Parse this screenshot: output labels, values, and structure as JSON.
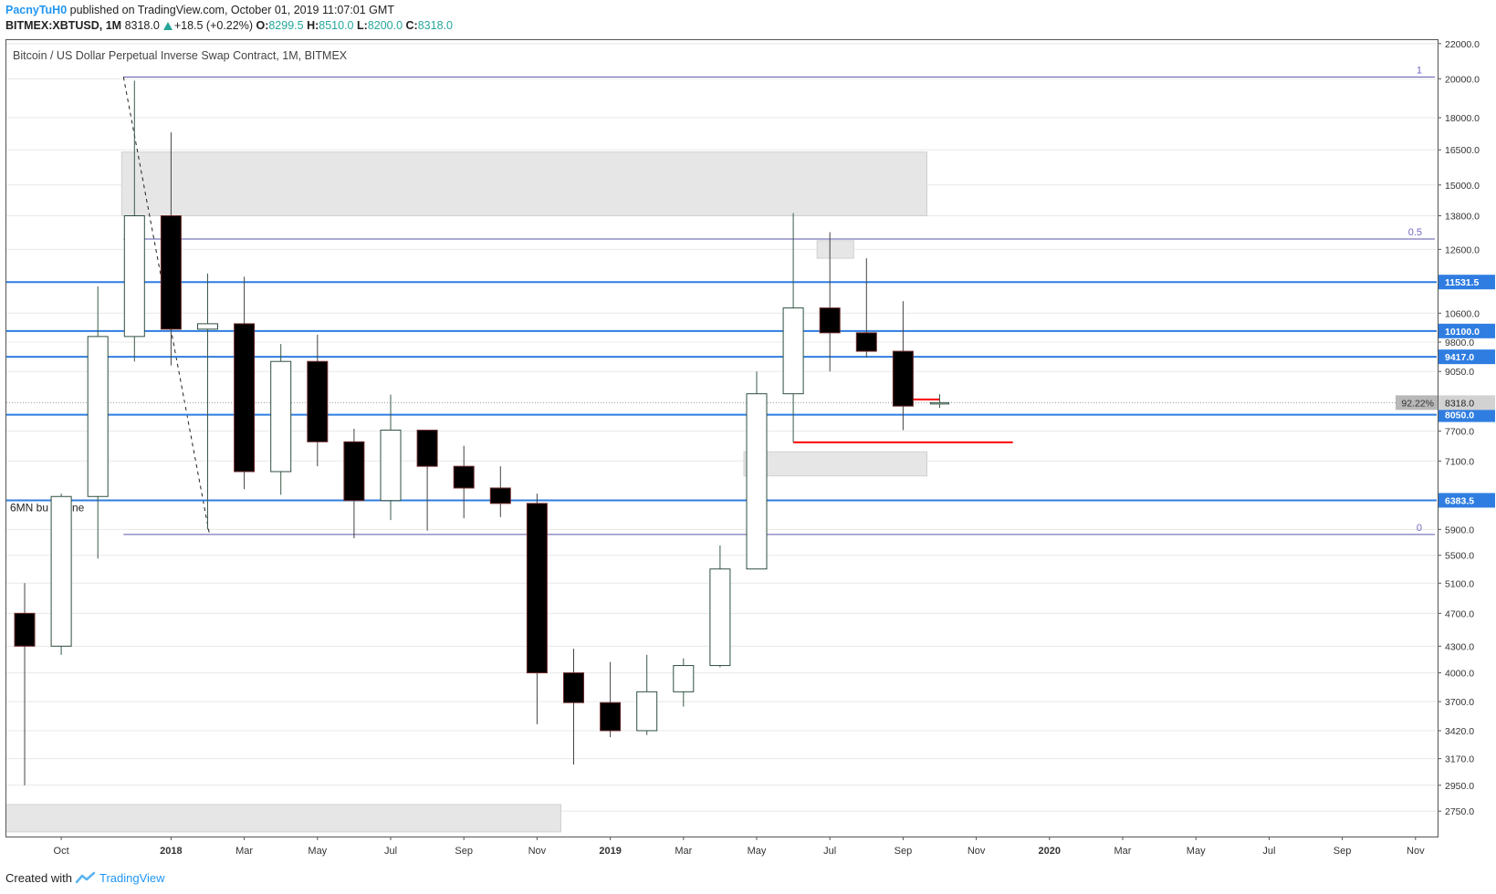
{
  "header": {
    "author": "PacnyTuH0",
    "published": "published on TradingView.com, October 01, 2019 11:07:01 GMT",
    "symbol": "BITMEX:XBTUSD, 1M",
    "last": "8318.0",
    "change": "+18.5 (+0.22%)",
    "o_label": "O:",
    "o_value": "8299.5",
    "h_label": "H:",
    "h_value": "8510.0",
    "l_label": "L:",
    "l_value": "8200.0",
    "c_label": "C:",
    "c_value": "8318.0"
  },
  "footer": {
    "created_with": "Created with",
    "brand": "TradingView"
  },
  "colors": {
    "blue_line": "#2f7de1",
    "fib_line": "#5b54a8",
    "grid": "#e8e8e8",
    "zone": "#e6e6e6",
    "red": "#ff0000"
  },
  "chart_data": {
    "type": "candlestick",
    "title": "Bitcoin / US Dollar Perpetual Inverse Swap Contract, 1M, BITMEX",
    "y_scale": "log",
    "ylim": [
      2580,
      22100
    ],
    "x_tick_labels": [
      "Oct",
      "2018",
      "Mar",
      "May",
      "Jul",
      "Sep",
      "Nov",
      "2019",
      "Mar",
      "May",
      "Jul",
      "Sep",
      "Nov",
      "2020",
      "Mar",
      "May",
      "Jul",
      "Sep",
      "Nov"
    ],
    "y_tick_labels": [
      "22000.0",
      "20000.0",
      "18000.0",
      "16500.0",
      "15000.0",
      "13800.0",
      "12600.0",
      "10600.0",
      "9800.0",
      "9050.0",
      "7700.0",
      "7100.0",
      "5900.0",
      "5500.0",
      "5100.0",
      "4700.0",
      "4300.0",
      "4000.0",
      "3700.0",
      "3420.0",
      "3170.0",
      "2950.0",
      "2750.0"
    ],
    "candles": [
      {
        "month": "2017-09",
        "o": 4700,
        "h": 5100,
        "l": 2950,
        "c": 4300
      },
      {
        "month": "2017-10",
        "o": 4300,
        "h": 6500,
        "l": 4200,
        "c": 6450
      },
      {
        "month": "2017-11",
        "o": 6450,
        "h": 11400,
        "l": 5450,
        "c": 9950
      },
      {
        "month": "2017-12",
        "o": 9950,
        "h": 19900,
        "l": 9300,
        "c": 13800
      },
      {
        "month": "2018-01",
        "o": 13800,
        "h": 17300,
        "l": 9200,
        "c": 10150
      },
      {
        "month": "2018-02",
        "o": 10150,
        "h": 11800,
        "l": 5900,
        "c": 10300
      },
      {
        "month": "2018-03",
        "o": 10300,
        "h": 11700,
        "l": 6580,
        "c": 6900
      },
      {
        "month": "2018-04",
        "o": 6900,
        "h": 9750,
        "l": 6480,
        "c": 9300
      },
      {
        "month": "2018-05",
        "o": 9300,
        "h": 10000,
        "l": 7000,
        "c": 7480
      },
      {
        "month": "2018-06",
        "o": 7480,
        "h": 7750,
        "l": 5760,
        "c": 6380
      },
      {
        "month": "2018-07",
        "o": 6380,
        "h": 8500,
        "l": 6050,
        "c": 7720
      },
      {
        "month": "2018-08",
        "o": 7720,
        "h": 7720,
        "l": 5880,
        "c": 7000
      },
      {
        "month": "2018-09",
        "o": 7000,
        "h": 7400,
        "l": 6080,
        "c": 6600
      },
      {
        "month": "2018-10",
        "o": 6600,
        "h": 7000,
        "l": 6100,
        "c": 6330
      },
      {
        "month": "2018-11",
        "o": 6330,
        "h": 6500,
        "l": 3480,
        "c": 4000
      },
      {
        "month": "2018-12",
        "o": 4000,
        "h": 4270,
        "l": 3120,
        "c": 3690
      },
      {
        "month": "2019-01",
        "o": 3690,
        "h": 4120,
        "l": 3360,
        "c": 3420
      },
      {
        "month": "2019-02",
        "o": 3420,
        "h": 4200,
        "l": 3380,
        "c": 3800
      },
      {
        "month": "2019-03",
        "o": 3800,
        "h": 4160,
        "l": 3650,
        "c": 4080
      },
      {
        "month": "2019-04",
        "o": 4080,
        "h": 5650,
        "l": 4060,
        "c": 5300
      },
      {
        "month": "2019-05",
        "o": 5300,
        "h": 9050,
        "l": 5300,
        "c": 8520
      },
      {
        "month": "2019-06",
        "o": 8520,
        "h": 13900,
        "l": 7470,
        "c": 10750
      },
      {
        "month": "2019-07",
        "o": 10750,
        "h": 13200,
        "l": 9050,
        "c": 10050
      },
      {
        "month": "2019-08",
        "o": 10050,
        "h": 12300,
        "l": 9400,
        "c": 9560
      },
      {
        "month": "2019-09",
        "o": 9560,
        "h": 10950,
        "l": 7720,
        "c": 8240
      },
      {
        "month": "2019-10",
        "o": 8299.5,
        "h": 8510,
        "l": 8200,
        "c": 8318
      }
    ],
    "horizontal_levels": [
      {
        "label": "11531.5",
        "value": 11531.5
      },
      {
        "label": "10100.0",
        "value": 10100
      },
      {
        "label": "9417.0",
        "value": 9417
      },
      {
        "label": "8050.0",
        "value": 8050
      },
      {
        "label": "6383.5",
        "value": 6383.5
      }
    ],
    "fib_levels": [
      {
        "label": "1",
        "value": 20100
      },
      {
        "label": "0.5",
        "value": 12960
      },
      {
        "label": "0",
        "value": 5820
      }
    ],
    "last_price": {
      "label": "8318.0",
      "percent_label": "92.22%",
      "value": 8318
    },
    "annotations": [
      {
        "text": "6MN bu",
        "suffix_text": "ne"
      }
    ],
    "zones": [
      {
        "from": "2017-12",
        "to": "2019-10",
        "top": 16400,
        "bottom": 13800
      },
      {
        "from": "2019-07",
        "to": "2019-08",
        "top": 12900,
        "bottom": 12300
      },
      {
        "from": "2019-05",
        "to": "2019-10",
        "top": 7280,
        "bottom": 6820
      },
      {
        "from": "2017-08",
        "to": "2018-12",
        "top": 2800,
        "bottom": 2600
      }
    ],
    "red_lines": [
      {
        "from": "2019-06",
        "to": "2019-12",
        "value": 7470
      },
      {
        "from": "2019-09",
        "to": "2019-10",
        "value": 8390
      }
    ]
  }
}
